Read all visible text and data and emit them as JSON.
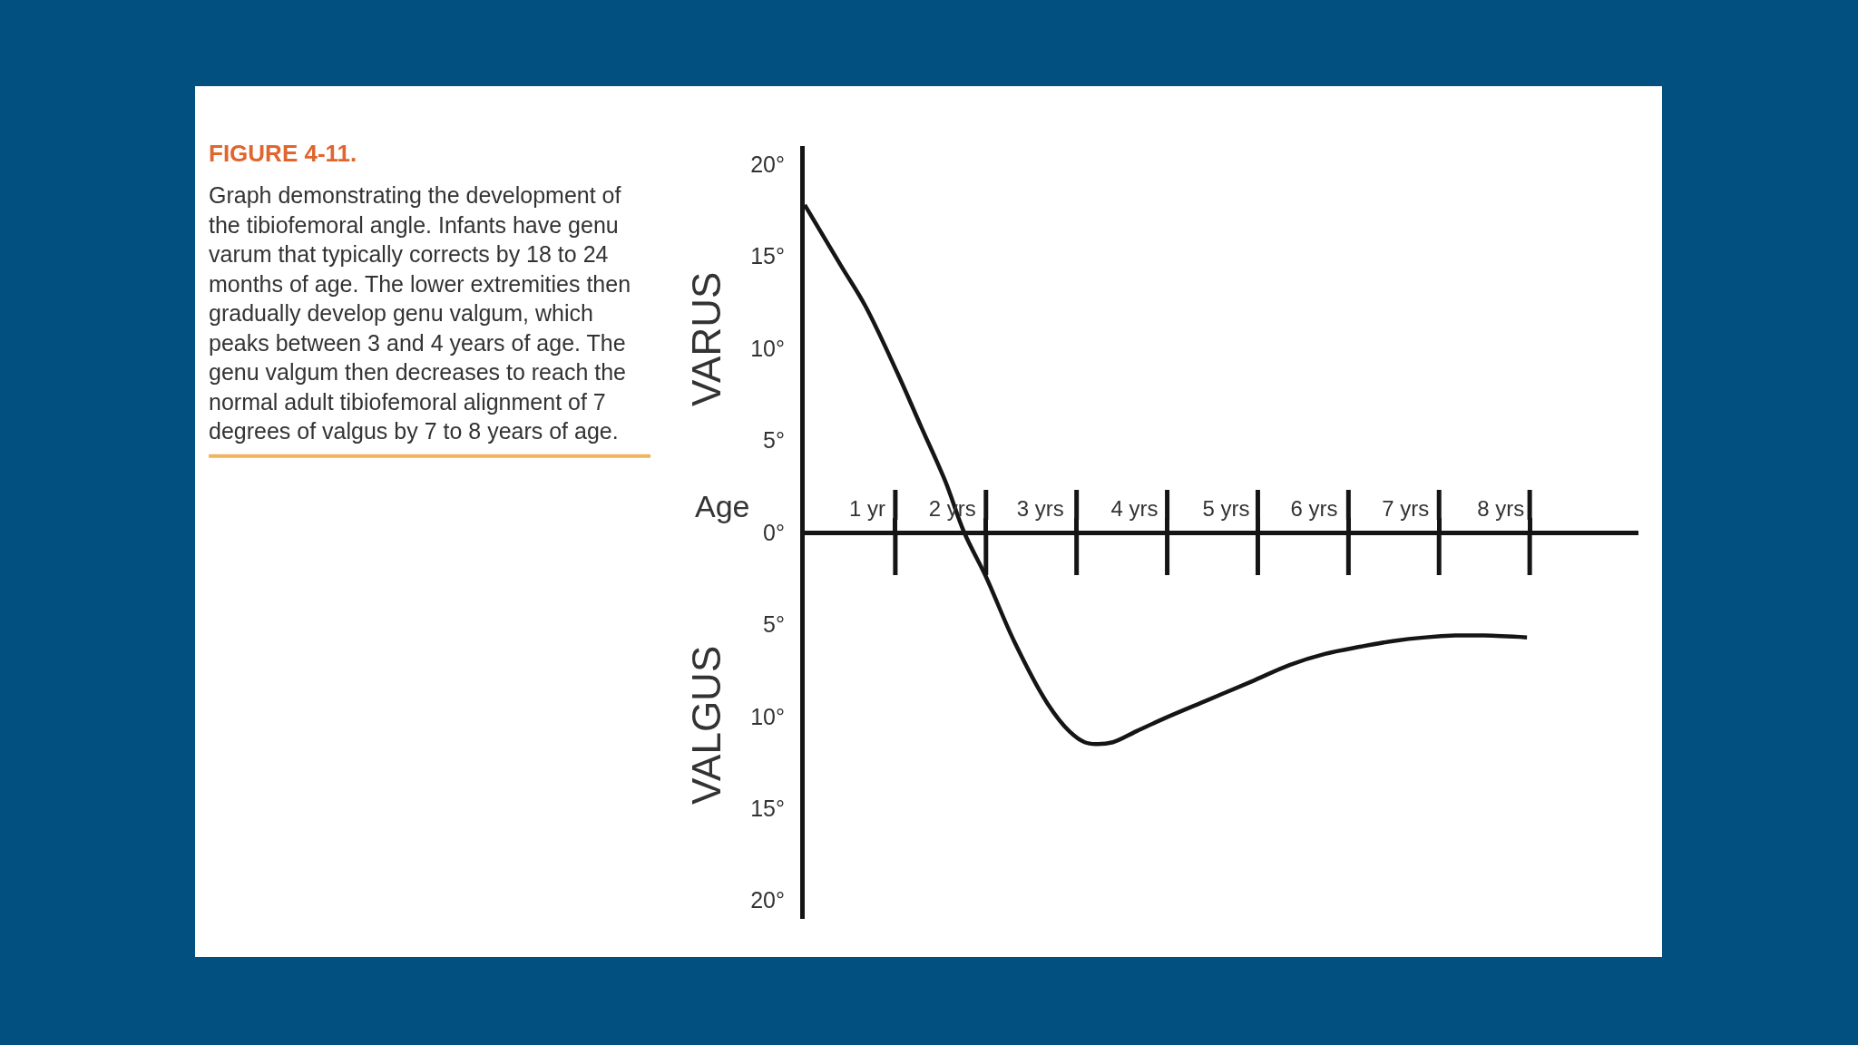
{
  "chart_data": {
    "type": "line",
    "title": "FIGURE 4-11.",
    "subtitle": "Graph demonstrating the development of the tibiofemoral angle. Infants have genu varum that typically corrects by 18 to 24 months of age. The lower extremities then gradually develop genu valgum, which peaks between 3 and 4 years of age. The genu valgum then decreases to reach the normal adult tibiofemoral alignment of 7 degrees of valgus by 7 to 8 years of age.",
    "xlabel": "Age",
    "annotations": [
      "VARUS",
      "VALGUS"
    ],
    "x": [
      0,
      0.4,
      0.67,
      1.02,
      1.28,
      1.55,
      1.76,
      2.0,
      2.31,
      2.68,
      2.92,
      3.09,
      3.21,
      3.4,
      3.66,
      3.97,
      4.45,
      4.93,
      5.35,
      5.74,
      6.14,
      6.49,
      6.85,
      7.18,
      7.5,
      7.97
    ],
    "series": [
      {
        "color": "#151515",
        "values": [
          17.8,
          14.5,
          12.3,
          8.7,
          5.8,
          2.8,
          0,
          -2.4,
          -5.9,
          -9.3,
          -10.8,
          -11.4,
          -11.5,
          -11.4,
          -10.8,
          -10.1,
          -9.1,
          -8.1,
          -7.2,
          -6.6,
          -6.2,
          -5.9,
          -5.7,
          -5.6,
          -5.6,
          -5.7
        ]
      }
    ],
    "xlim": [
      0,
      9.2
    ],
    "xticks": [
      {
        "value": 0.69,
        "label": "1 yr"
      },
      {
        "value": 1,
        "label": null
      },
      {
        "value": 1.63,
        "label": "2 yrs"
      },
      {
        "value": 2,
        "label": null
      },
      {
        "value": 2.6,
        "label": "3 yrs"
      },
      {
        "value": 3,
        "label": null
      },
      {
        "value": 3.64,
        "label": "4 yrs"
      },
      {
        "value": 4,
        "label": null
      },
      {
        "value": 4.65,
        "label": "5 yrs"
      },
      {
        "value": 5,
        "label": null
      },
      {
        "value": 5.62,
        "label": "6 yrs"
      },
      {
        "value": 6,
        "label": null
      },
      {
        "value": 6.63,
        "label": "7 yrs"
      },
      {
        "value": 7,
        "label": null
      },
      {
        "value": 7.68,
        "label": "8 yrs"
      },
      {
        "value": 8,
        "label": null
      }
    ],
    "ylim": [
      -21,
      21
    ],
    "yticks": [
      {
        "value": 20,
        "label": "20°"
      },
      {
        "value": 15,
        "label": "15°"
      },
      {
        "value": 10,
        "label": "10°"
      },
      {
        "value": 5,
        "label": "5°"
      },
      {
        "value": 0,
        "label": "0°"
      },
      {
        "value": -5,
        "label": "5°"
      },
      {
        "value": -10,
        "label": "10°"
      },
      {
        "value": -15,
        "label": "15°"
      },
      {
        "value": -20,
        "label": "20°"
      }
    ]
  }
}
